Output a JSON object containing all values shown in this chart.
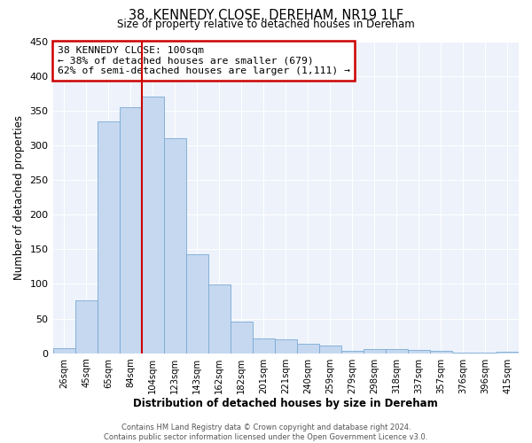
{
  "title": "38, KENNEDY CLOSE, DEREHAM, NR19 1LF",
  "subtitle": "Size of property relative to detached houses in Dereham",
  "xlabel": "Distribution of detached houses by size in Dereham",
  "ylabel": "Number of detached properties",
  "bar_labels": [
    "26sqm",
    "45sqm",
    "65sqm",
    "84sqm",
    "104sqm",
    "123sqm",
    "143sqm",
    "162sqm",
    "182sqm",
    "201sqm",
    "221sqm",
    "240sqm",
    "259sqm",
    "279sqm",
    "298sqm",
    "318sqm",
    "337sqm",
    "357sqm",
    "376sqm",
    "396sqm",
    "415sqm"
  ],
  "bar_values": [
    7,
    76,
    335,
    355,
    370,
    310,
    143,
    99,
    46,
    21,
    20,
    14,
    11,
    3,
    6,
    6,
    5,
    3,
    1,
    1,
    2
  ],
  "bar_color": "#c5d8f0",
  "bar_edge_color": "#7aaad4",
  "vline_color": "#cc0000",
  "annotation_title": "38 KENNEDY CLOSE: 100sqm",
  "annotation_line1": "← 38% of detached houses are smaller (679)",
  "annotation_line2": "62% of semi-detached houses are larger (1,111) →",
  "annotation_box_color": "#ffffff",
  "annotation_box_edge": "#cc0000",
  "ylim": [
    0,
    450
  ],
  "yticks": [
    0,
    50,
    100,
    150,
    200,
    250,
    300,
    350,
    400,
    450
  ],
  "footer_line1": "Contains HM Land Registry data © Crown copyright and database right 2024.",
  "footer_line2": "Contains public sector information licensed under the Open Government Licence v3.0.",
  "bg_color": "#ffffff",
  "plot_bg_color": "#edf2fb"
}
